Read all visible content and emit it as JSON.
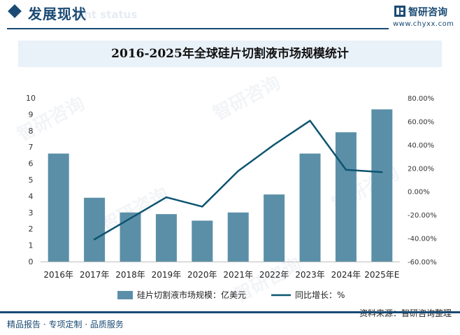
{
  "header": {
    "title": "发展现状",
    "ghost_text": "ent status",
    "brand_name": "智研咨询",
    "brand_url": "www.chyxx.com"
  },
  "watermark": "智研咨询",
  "chart_data": {
    "type": "bar+line",
    "title": "2016-2025年全球硅片切割液市场规模统计",
    "categories": [
      "2016年",
      "2017年",
      "2018年",
      "2019年",
      "2020年",
      "2021年",
      "2022年",
      "2023年",
      "2024年",
      "2025年E"
    ],
    "series": [
      {
        "name": "硅片切割液市场规模：亿美元",
        "type": "bar",
        "axis": "left",
        "color": "#5b8fa8",
        "values": [
          6.6,
          3.9,
          3.0,
          2.9,
          2.5,
          3.0,
          4.1,
          6.6,
          7.9,
          9.3
        ]
      },
      {
        "name": "同比增长：%",
        "type": "line",
        "axis": "right",
        "color": "#0d5470",
        "values": [
          null,
          -41.0,
          -23.0,
          -5.0,
          -13.0,
          17.5,
          40.0,
          60.5,
          18.5,
          16.5
        ]
      }
    ],
    "y_left": {
      "min": 0,
      "max": 10,
      "ticks": [
        "0",
        "1",
        "2",
        "3",
        "4",
        "5",
        "6",
        "7",
        "8",
        "9",
        "10"
      ]
    },
    "y_right": {
      "min": -60,
      "max": 80,
      "ticks": [
        "-60.00%",
        "-40.00%",
        "-20.00%",
        "0.00%",
        "20.00%",
        "40.00%",
        "60.00%",
        "80.00%"
      ]
    },
    "grid": false,
    "legend_position": "bottom"
  },
  "footer": {
    "left": "精品报告 · 专项定制 · 品质服务",
    "source": "资料来源：智研咨询整理"
  }
}
